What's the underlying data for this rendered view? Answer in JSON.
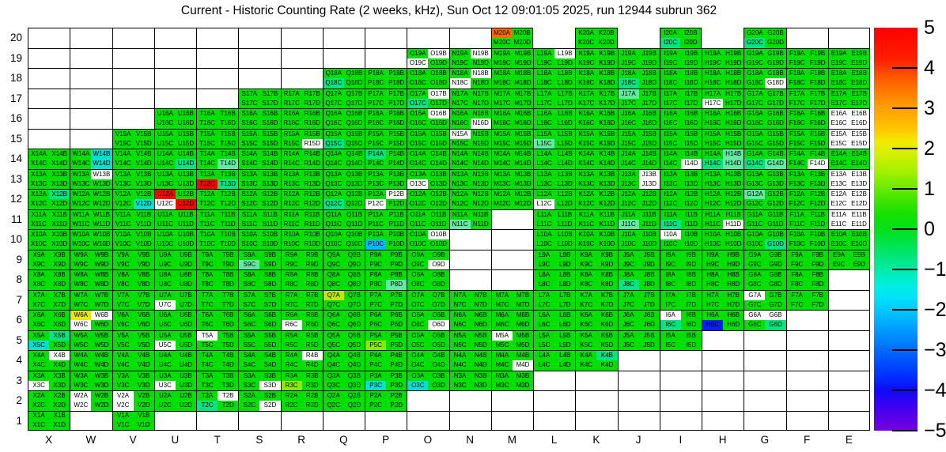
{
  "title": "Current - Historic Counting Rate (2 weeks, kHz), Sun Oct 12 09:01:05 2025, run 12944 subrun 362",
  "chart_data": {
    "type": "heatmap",
    "title": "Current - Historic Counting Rate (2 weeks, kHz), Sun Oct 12 09:01:05 2025, run 12944 subrun 362",
    "xlabel_ticks": [
      "X",
      "W",
      "V",
      "U",
      "T",
      "S",
      "R",
      "Q",
      "P",
      "O",
      "N",
      "M",
      "L",
      "K",
      "J",
      "I",
      "H",
      "G",
      "F",
      "E"
    ],
    "ylabel_ticks": [
      20,
      19,
      18,
      17,
      16,
      15,
      14,
      13,
      12,
      11,
      10,
      9,
      8,
      7,
      6,
      5,
      4,
      3,
      2,
      1
    ],
    "value_range": [
      -5,
      5
    ],
    "legend_position": "right",
    "quadrant_order": [
      "A",
      "B",
      "C",
      "D"
    ],
    "cells": {
      "20": "M K I G",
      "19": "O N M L K J I H G F E",
      "18": "Q P O N M L K J I H G F E",
      "17": "S R Q P O N M L K J I H G F E",
      "16": "U T S R Q P O N M L K J I H G F E",
      "15": "V U T S R Q P O N M L K J I H G F E",
      "14": "X W V U T S R Q P O N M L K J I H G F E",
      "13": "X W V U T S R Q P O N M L K J I H G F E",
      "12": "X W V U T S R Q P O N M L K J I H G F E",
      "11": "X W V U T S R Q P O N L K J I H G F E",
      "10": "X W V U T S R Q P O L K J I H G F E",
      "9": "X W V U T S R Q P O L K J I H G F E",
      "8": "X W V U T S R Q P O L K J I H G F",
      "7": "X W V U T S R Q P O N M L K J I H G F",
      "6": "X W V U T S R Q P O N M L K J I H G",
      "5": "X W V U T S R Q P O N M L K J I",
      "4": "X W V U T S R Q P O N M L K",
      "3": "X W V U T S R Q P O N M",
      "2": "X W V U T S R Q P",
      "1": "X V"
    },
    "no_border_gaps": "L20 J20 H20",
    "all_white_cells": "E16 E15 E13 E12 E11",
    "special_quadrants": {
      "orange": "M20A",
      "red": "T13C U12A U12D",
      "yellow": "W6A",
      "yellowgreen": "Q7A",
      "limeyellow": "R3C P5C",
      "blue": "H6C",
      "skyblue": "P10C",
      "cyan": "W14B W14D V12D X5C O3C P3C",
      "teal": "G20C I20C Q18C J18C O17C Q15C P14A U14D T13D T2C X12B Q12C I11C G10D X5B I6C G6D K4B J8C G14C H14C",
      "mint": "J17A L15C H14B H14D G14D T14D G12A N11C J11C S9C P8D",
      "white": "O19B O19C N19B L19B N18B N18C G18D O17B H17C O16B N16D R15D N15A W13B I14D F14D O13C J13B J13D U12C P12B P12C L12C H11D O10B I10A O9D U7C G7A W6B W6C R6C O6D I6A G6A G6B U5C T5A M5A X4B R4B M4D X3C U3C S3D W2A W2C V2A V2C T2B S2D"
    },
    "approx_values_by_color": {
      "green": 0.3,
      "teal": -0.5,
      "mint": -0.2,
      "cyan": -0.9,
      "skyblue": -1.7,
      "blue": -3.8,
      "yellow": 1.9,
      "yellowgreen": 1.3,
      "limeyellow": 0.9,
      "orange": 4.1,
      "red": 5.0,
      "white": null
    },
    "colorbar": {
      "ticks": [
        5,
        4,
        3,
        2,
        1,
        0,
        -1,
        -2,
        -3,
        -4,
        -5
      ],
      "gradient": [
        [
          "0",
          "#ff0000"
        ],
        [
          "8",
          "#ff2000"
        ],
        [
          "13",
          "#ff6000"
        ],
        [
          "19",
          "#ff9800"
        ],
        [
          "25",
          "#ffc400"
        ],
        [
          "28",
          "#f4e800"
        ],
        [
          "31",
          "#d8f000"
        ],
        [
          "36",
          "#a0f000"
        ],
        [
          "41",
          "#58e800"
        ],
        [
          "46",
          "#18e000"
        ],
        [
          "50",
          "#00e018"
        ],
        [
          "55",
          "#00e460"
        ],
        [
          "60",
          "#00eaa8"
        ],
        [
          "64",
          "#00eee0"
        ],
        [
          "67",
          "#00e2f8"
        ],
        [
          "71",
          "#00c0ff"
        ],
        [
          "76",
          "#0092ff"
        ],
        [
          "81",
          "#0062ff"
        ],
        [
          "86",
          "#0034ff"
        ],
        [
          "90",
          "#0f0afa"
        ],
        [
          "95",
          "#4a00f0"
        ],
        [
          "100",
          "#7600dc"
        ]
      ]
    }
  },
  "palette": {
    "green": "#00e000",
    "teal": "#00e580",
    "mint": "#62e9a2",
    "cyan": "#00e0d0",
    "skyblue": "#00baff",
    "blue": "#0a1fff",
    "red": "#ff0000",
    "orange": "#ff6a00",
    "yellow": "#e8e800",
    "yellowgreen": "#bfe800",
    "limeyellow": "#8ce800",
    "white": "#ffffff"
  }
}
